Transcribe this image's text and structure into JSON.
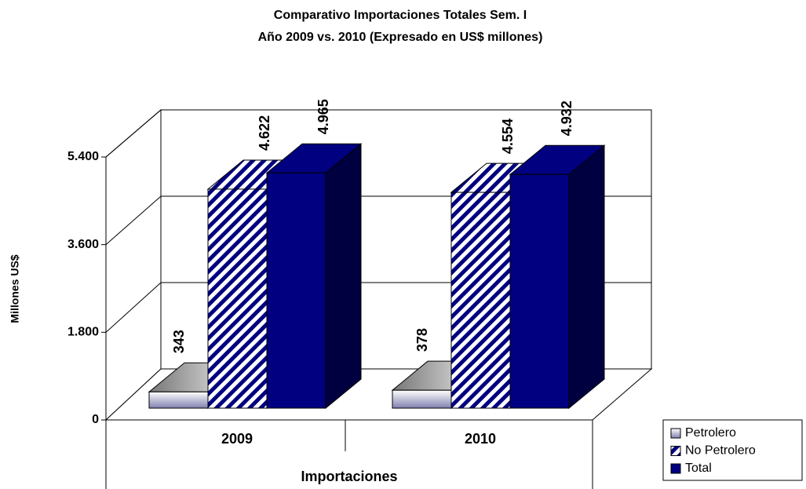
{
  "chart_data": {
    "type": "bar3d",
    "title": [
      "Comparativo Importaciones Totales Sem. I",
      "Año 2009 vs. 2010 (Expresado en US$ millones)"
    ],
    "xlabel": "Importaciones",
    "ylabel": "Millones US$",
    "categories": [
      "2009",
      "2010"
    ],
    "series": [
      {
        "name": "Petrolero",
        "color": "#9a9ac0",
        "values": [
          343,
          378
        ],
        "value_labels": [
          "343",
          "378"
        ]
      },
      {
        "name": "No Petrolero",
        "color": "#000080",
        "values": [
          4622,
          4554
        ],
        "value_labels": [
          "4.622",
          "4.554"
        ]
      },
      {
        "name": "Total",
        "color": "#000080",
        "values": [
          4965,
          4932
        ],
        "value_labels": [
          "4.965",
          "4.932"
        ]
      }
    ],
    "ylim": [
      0,
      5400
    ],
    "yticks": [
      0,
      {
        "value": 1800,
        "label": "1.800"
      },
      {
        "value": 3600,
        "label": "3.600"
      },
      {
        "value": 5400,
        "label": "5.400"
      }
    ],
    "grid": true,
    "legend": "right"
  }
}
